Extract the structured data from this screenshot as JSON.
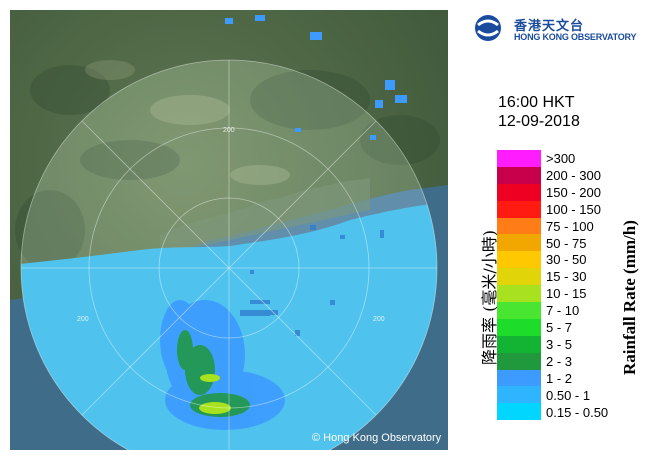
{
  "logo": {
    "name_zh": "香港天文台",
    "name_en": "HONG KONG OBSERVATORY"
  },
  "radar": {
    "time": "16:00 HKT",
    "date": "12-09-2018",
    "range_labels": [
      "200",
      "200",
      "200",
      "200"
    ],
    "credit": "© Hong Kong Observatory"
  },
  "legend": {
    "title_en": "Rainfall Rate (mm/h)",
    "title_zh": "降雨率 (毫米/小時)",
    "items": [
      {
        "label": ">300",
        "color": "#ff1cff"
      },
      {
        "label": "200 - 300",
        "color": "#c8004b"
      },
      {
        "label": "150 - 200",
        "color": "#ee0022"
      },
      {
        "label": "100 - 150",
        "color": "#ff1a12"
      },
      {
        "label": "75 - 100",
        "color": "#ff7c16"
      },
      {
        "label": "50 - 75",
        "color": "#f2a700"
      },
      {
        "label": "30 - 50",
        "color": "#ffc800"
      },
      {
        "label": "15 - 30",
        "color": "#e1d408"
      },
      {
        "label": "10 - 15",
        "color": "#a8e21f"
      },
      {
        "label": "7 - 10",
        "color": "#49e631"
      },
      {
        "label": "5 - 7",
        "color": "#1edc2a"
      },
      {
        "label": "3 - 5",
        "color": "#13b334"
      },
      {
        "label": "2 - 3",
        "color": "#20983c"
      },
      {
        "label": "1 - 2",
        "color": "#3d9bff"
      },
      {
        "label": "0.50 - 1",
        "color": "#2fb5ff"
      },
      {
        "label": "0.15 - 0.50",
        "color": "#00d6ff"
      }
    ]
  }
}
